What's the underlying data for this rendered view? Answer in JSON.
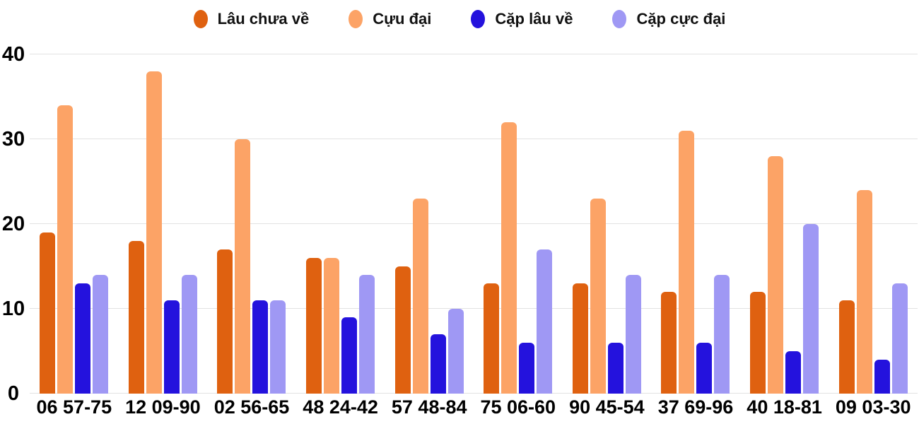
{
  "chart_data": {
    "type": "bar",
    "title": "",
    "xlabel": "",
    "ylabel": "",
    "categories": [
      "06 57-75",
      "12 09-90",
      "02 56-65",
      "48 24-42",
      "57 48-84",
      "75 06-60",
      "90 45-54",
      "37 69-96",
      "40 18-81",
      "09 03-30"
    ],
    "series": [
      {
        "name": "Lâu chưa về",
        "color": "#DF6110",
        "values": [
          19,
          18,
          17,
          16,
          15,
          13,
          13,
          12,
          12,
          11
        ]
      },
      {
        "name": "Cựu đại",
        "color": "#FCA366",
        "values": [
          34,
          38,
          30,
          16,
          23,
          32,
          23,
          31,
          28,
          24
        ]
      },
      {
        "name": "Cặp lâu về",
        "color": "#2412DD",
        "values": [
          13,
          11,
          11,
          9,
          7,
          6,
          6,
          6,
          5,
          4
        ]
      },
      {
        "name": "Cặp cực đại",
        "color": "#9F98F4",
        "values": [
          14,
          14,
          11,
          14,
          10,
          17,
          14,
          14,
          20,
          13
        ]
      }
    ],
    "ylim": [
      0,
      40
    ],
    "yticks": [
      0,
      10,
      20,
      30,
      40
    ],
    "grid": true,
    "legend_position": "top",
    "background": "#ffffff",
    "gridline_color": "#e2e2e2"
  }
}
